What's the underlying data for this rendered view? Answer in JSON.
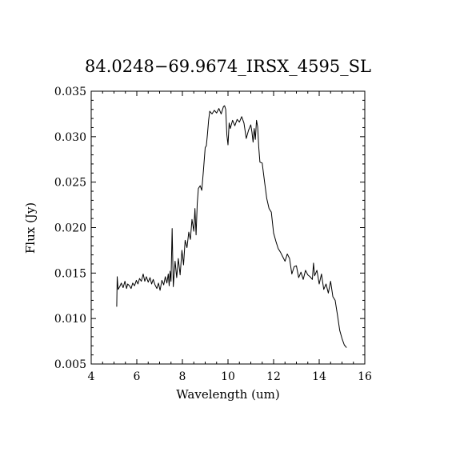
{
  "chart_data": {
    "type": "line",
    "title": "84.0248−69.9674_IRSX_4595_SL",
    "xlabel": "Wavelength (um)",
    "ylabel": "Flux (Jy)",
    "xlim": [
      4,
      16
    ],
    "ylim": [
      0.005,
      0.035
    ],
    "xticks": [
      4,
      6,
      8,
      10,
      12,
      14,
      16
    ],
    "xtick_labels": [
      "4",
      "6",
      "8",
      "10",
      "12",
      "14",
      "16"
    ],
    "yticks": [
      0.005,
      0.01,
      0.015,
      0.02,
      0.025,
      0.03,
      0.035
    ],
    "ytick_labels": [
      "0.005",
      "0.010",
      "0.015",
      "0.020",
      "0.025",
      "0.030",
      "0.035"
    ],
    "grid": false,
    "legend": "none",
    "line_color": "#000000",
    "series": [
      {
        "x": [
          5.12,
          5.14,
          5.18,
          5.25,
          5.32,
          5.4,
          5.48,
          5.55,
          5.6,
          5.68,
          5.75,
          5.82,
          5.9,
          5.98,
          6.05,
          6.12,
          6.2,
          6.28,
          6.35,
          6.42,
          6.5,
          6.58,
          6.65,
          6.72,
          6.8,
          6.88,
          6.95,
          7.02,
          7.1,
          7.18,
          7.25,
          7.32,
          7.38,
          7.42,
          7.46,
          7.5,
          7.55,
          7.6,
          7.68,
          7.75,
          7.82,
          7.9,
          7.98,
          8.05,
          8.12,
          8.2,
          8.28,
          8.35,
          8.42,
          8.5,
          8.55,
          8.6,
          8.65,
          8.7,
          8.78,
          8.85,
          8.92,
          9.0,
          9.05,
          9.1,
          9.15,
          9.2,
          9.3,
          9.4,
          9.5,
          9.6,
          9.7,
          9.8,
          9.85,
          9.9,
          9.95,
          10.0,
          10.05,
          10.1,
          10.2,
          10.3,
          10.4,
          10.5,
          10.6,
          10.7,
          10.8,
          10.9,
          11.0,
          11.05,
          11.1,
          11.15,
          11.2,
          11.25,
          11.3,
          11.35,
          11.4,
          11.5,
          11.6,
          11.7,
          11.8,
          11.9,
          12.0,
          12.1,
          12.2,
          12.3,
          12.4,
          12.5,
          12.6,
          12.7,
          12.8,
          12.9,
          13.0,
          13.1,
          13.2,
          13.3,
          13.4,
          13.5,
          13.6,
          13.7,
          13.75,
          13.8,
          13.9,
          14.0,
          14.1,
          14.2,
          14.3,
          14.4,
          14.5,
          14.6,
          14.7,
          14.8,
          14.9,
          15.0,
          15.1,
          15.2
        ],
        "y": [
          0.0113,
          0.0146,
          0.0132,
          0.0135,
          0.0139,
          0.0134,
          0.0141,
          0.0133,
          0.0138,
          0.0136,
          0.0133,
          0.0139,
          0.0136,
          0.0142,
          0.0138,
          0.0144,
          0.0141,
          0.0149,
          0.0141,
          0.0146,
          0.014,
          0.0145,
          0.0138,
          0.0143,
          0.0137,
          0.0133,
          0.0139,
          0.0131,
          0.0142,
          0.0137,
          0.0146,
          0.0139,
          0.0149,
          0.0136,
          0.0152,
          0.0141,
          0.0199,
          0.0135,
          0.0163,
          0.0145,
          0.0166,
          0.0148,
          0.0175,
          0.0159,
          0.0186,
          0.0178,
          0.0195,
          0.0187,
          0.0209,
          0.0196,
          0.0221,
          0.0192,
          0.0226,
          0.0243,
          0.0246,
          0.0241,
          0.0262,
          0.0288,
          0.029,
          0.0303,
          0.0318,
          0.0328,
          0.0325,
          0.0329,
          0.0326,
          0.0331,
          0.0325,
          0.0333,
          0.0334,
          0.033,
          0.0302,
          0.0291,
          0.0315,
          0.0309,
          0.0318,
          0.0312,
          0.0319,
          0.0316,
          0.0322,
          0.0315,
          0.0298,
          0.0307,
          0.0313,
          0.0305,
          0.0294,
          0.0309,
          0.0297,
          0.0318,
          0.0311,
          0.0288,
          0.0272,
          0.0271,
          0.0251,
          0.0232,
          0.0221,
          0.0217,
          0.0194,
          0.0185,
          0.0177,
          0.0173,
          0.0168,
          0.0163,
          0.0171,
          0.0166,
          0.0149,
          0.0157,
          0.0158,
          0.0145,
          0.0151,
          0.0143,
          0.0153,
          0.0148,
          0.0146,
          0.0143,
          0.0161,
          0.0147,
          0.0153,
          0.0138,
          0.0149,
          0.0132,
          0.0138,
          0.0128,
          0.0141,
          0.0124,
          0.012,
          0.0104,
          0.0087,
          0.0078,
          0.0071,
          0.0068
        ]
      }
    ]
  }
}
